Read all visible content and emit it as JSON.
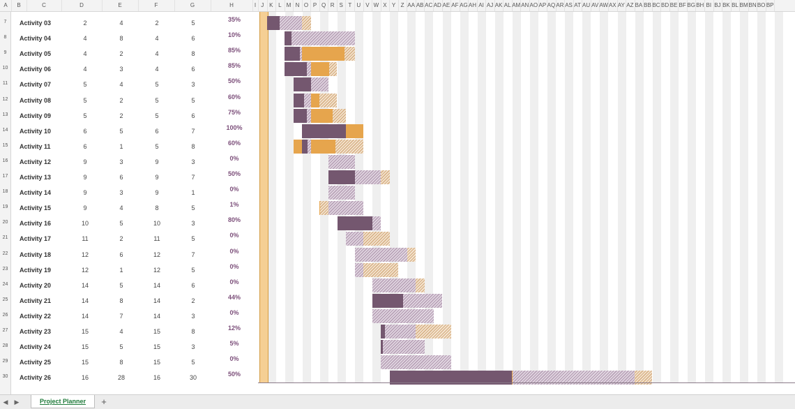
{
  "column_headers": [
    "A",
    "B",
    "C",
    "D",
    "E",
    "F",
    "G",
    "H",
    "I",
    "J",
    "K",
    "L",
    "M",
    "N",
    "O",
    "P",
    "Q",
    "R",
    "S",
    "T",
    "U",
    "V",
    "W",
    "X",
    "Y",
    "Z",
    "AA",
    "AB",
    "AC",
    "AD",
    "AE",
    "AF",
    "AG",
    "AH",
    "AI",
    "AJ",
    "AK",
    "AL",
    "AM",
    "AN",
    "AO",
    "AP",
    "AQ",
    "AR",
    "AS",
    "AT",
    "AU",
    "AV",
    "AW",
    "AX",
    "AY",
    "AZ",
    "BA",
    "BB",
    "BC",
    "BD",
    "BE",
    "BF",
    "BG",
    "BH",
    "BI",
    "BJ",
    "BK",
    "BL",
    "BM",
    "BN",
    "BO",
    "BP"
  ],
  "rows": [
    {
      "row": "7",
      "name": "Activity 03",
      "plan_start": 2,
      "plan_duration": 4,
      "actual_start": 2,
      "actual_duration": 5,
      "percent_complete": "35%"
    },
    {
      "row": "8",
      "name": "Activity 04",
      "plan_start": 4,
      "plan_duration": 8,
      "actual_start": 4,
      "actual_duration": 6,
      "percent_complete": "10%"
    },
    {
      "row": "9",
      "name": "Activity 05",
      "plan_start": 4,
      "plan_duration": 2,
      "actual_start": 4,
      "actual_duration": 8,
      "percent_complete": "85%"
    },
    {
      "row": "10",
      "name": "Activity 06",
      "plan_start": 4,
      "plan_duration": 3,
      "actual_start": 4,
      "actual_duration": 6,
      "percent_complete": "85%"
    },
    {
      "row": "11",
      "name": "Activity 07",
      "plan_start": 5,
      "plan_duration": 4,
      "actual_start": 5,
      "actual_duration": 3,
      "percent_complete": "50%"
    },
    {
      "row": "12",
      "name": "Activity 08",
      "plan_start": 5,
      "plan_duration": 2,
      "actual_start": 5,
      "actual_duration": 5,
      "percent_complete": "60%"
    },
    {
      "row": "13",
      "name": "Activity 09",
      "plan_start": 5,
      "plan_duration": 2,
      "actual_start": 5,
      "actual_duration": 6,
      "percent_complete": "75%"
    },
    {
      "row": "14",
      "name": "Activity 10",
      "plan_start": 6,
      "plan_duration": 5,
      "actual_start": 6,
      "actual_duration": 7,
      "percent_complete": "100%"
    },
    {
      "row": "15",
      "name": "Activity 11",
      "plan_start": 6,
      "plan_duration": 1,
      "actual_start": 5,
      "actual_duration": 8,
      "percent_complete": "60%"
    },
    {
      "row": "16",
      "name": "Activity 12",
      "plan_start": 9,
      "plan_duration": 3,
      "actual_start": 9,
      "actual_duration": 3,
      "percent_complete": "0%"
    },
    {
      "row": "17",
      "name": "Activity 13",
      "plan_start": 9,
      "plan_duration": 6,
      "actual_start": 9,
      "actual_duration": 7,
      "percent_complete": "50%"
    },
    {
      "row": "18",
      "name": "Activity 14",
      "plan_start": 9,
      "plan_duration": 3,
      "actual_start": 9,
      "actual_duration": 1,
      "percent_complete": "0%"
    },
    {
      "row": "19",
      "name": "Activity 15",
      "plan_start": 9,
      "plan_duration": 4,
      "actual_start": 8,
      "actual_duration": 5,
      "percent_complete": "1%"
    },
    {
      "row": "20",
      "name": "Activity 16",
      "plan_start": 10,
      "plan_duration": 5,
      "actual_start": 10,
      "actual_duration": 3,
      "percent_complete": "80%"
    },
    {
      "row": "21",
      "name": "Activity 17",
      "plan_start": 11,
      "plan_duration": 2,
      "actual_start": 11,
      "actual_duration": 5,
      "percent_complete": "0%"
    },
    {
      "row": "22",
      "name": "Activity 18",
      "plan_start": 12,
      "plan_duration": 6,
      "actual_start": 12,
      "actual_duration": 7,
      "percent_complete": "0%"
    },
    {
      "row": "23",
      "name": "Activity 19",
      "plan_start": 12,
      "plan_duration": 1,
      "actual_start": 12,
      "actual_duration": 5,
      "percent_complete": "0%"
    },
    {
      "row": "24",
      "name": "Activity 20",
      "plan_start": 14,
      "plan_duration": 5,
      "actual_start": 14,
      "actual_duration": 6,
      "percent_complete": "0%"
    },
    {
      "row": "25",
      "name": "Activity 21",
      "plan_start": 14,
      "plan_duration": 8,
      "actual_start": 14,
      "actual_duration": 2,
      "percent_complete": "44%"
    },
    {
      "row": "26",
      "name": "Activity 22",
      "plan_start": 14,
      "plan_duration": 7,
      "actual_start": 14,
      "actual_duration": 3,
      "percent_complete": "0%"
    },
    {
      "row": "27",
      "name": "Activity 23",
      "plan_start": 15,
      "plan_duration": 4,
      "actual_start": 15,
      "actual_duration": 8,
      "percent_complete": "12%"
    },
    {
      "row": "28",
      "name": "Activity 24",
      "plan_start": 15,
      "plan_duration": 5,
      "actual_start": 15,
      "actual_duration": 3,
      "percent_complete": "5%"
    },
    {
      "row": "29",
      "name": "Activity 25",
      "plan_start": 15,
      "plan_duration": 8,
      "actual_start": 15,
      "actual_duration": 5,
      "percent_complete": "0%"
    },
    {
      "row": "30",
      "name": "Activity 26",
      "plan_start": 16,
      "plan_duration": 28,
      "actual_start": 16,
      "actual_duration": 30,
      "percent_complete": "50%"
    }
  ],
  "sheet_tabs": [
    {
      "label": "Project Planner",
      "active": true
    }
  ],
  "add_sheet_label": "+",
  "nav_prev_label": "◀",
  "nav_next_label": "▶",
  "colors": {
    "plan_complete": "#74576f",
    "plan_remaining": "#b9a3b8",
    "actual_beyond_plan": "#e6a54d",
    "period_highlight": "#f5cf94",
    "percent_text": "#7c4f7a",
    "active_tab_text": "#1f7a3a"
  }
}
